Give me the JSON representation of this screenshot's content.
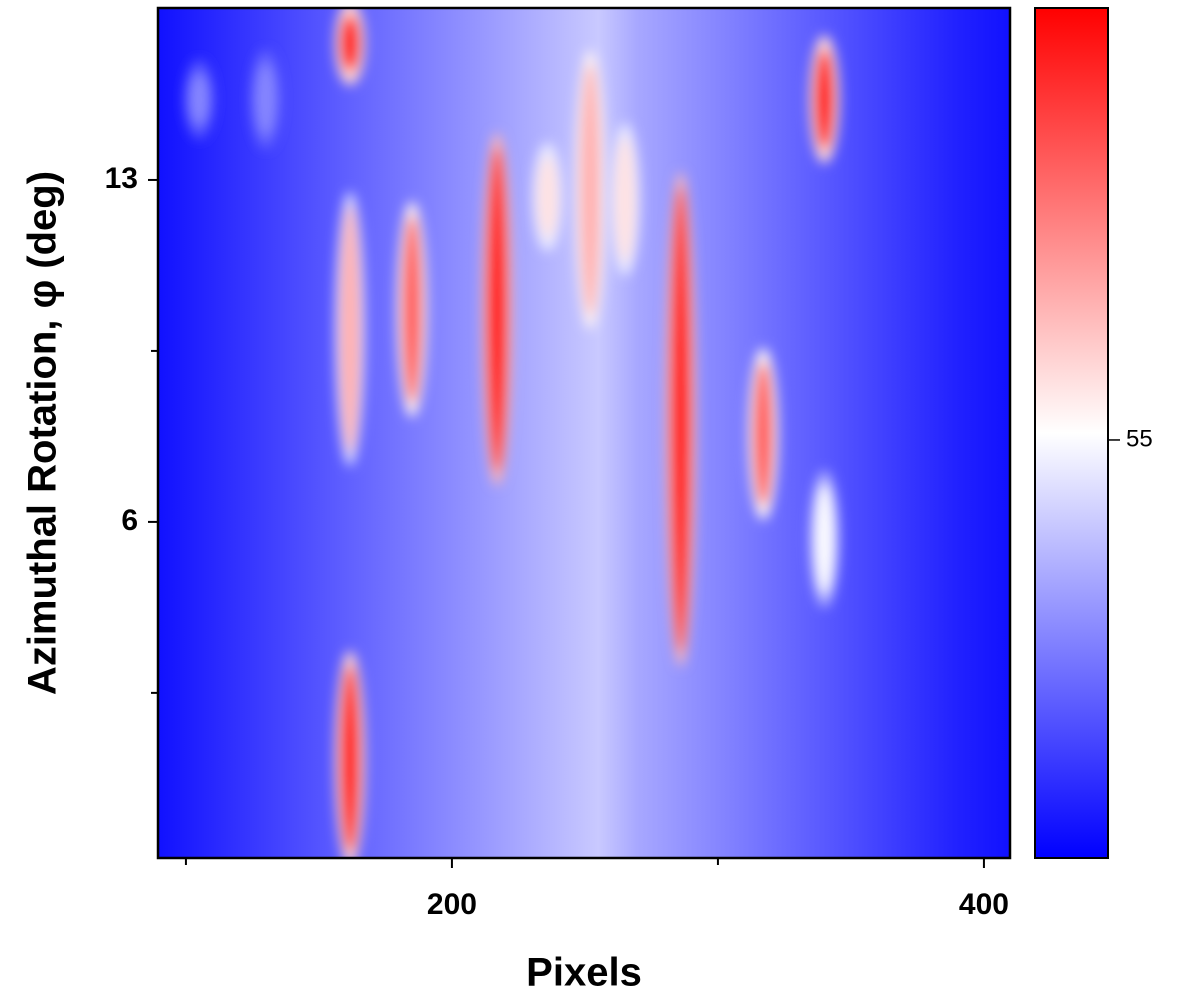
{
  "chart_data": {
    "type": "heatmap",
    "x_label": "Pixels",
    "y_label": "Azimuthal Rotation, φ (deg)",
    "xlim": [
      89.5,
      409.8
    ],
    "xticks": [
      200,
      400
    ],
    "xminorticks": [
      100,
      300
    ],
    "ylim": [
      -0.88,
      16.52
    ],
    "yticks": [
      6,
      13
    ],
    "yminorticks": [
      2.5,
      9.5
    ],
    "clim": [
      40,
      70.5
    ],
    "cticks": [
      55
    ],
    "colors": [
      "#0000ff",
      "#ffffff",
      "#ff0000"
    ],
    "background": {
      "x": [
        90,
        120,
        150,
        180,
        210,
        240,
        255,
        270,
        300,
        330,
        360,
        390,
        410
      ],
      "values": [
        41,
        43,
        45,
        47,
        49,
        51,
        52,
        50,
        48,
        46,
        44,
        42,
        41
      ]
    },
    "streaks": [
      {
        "x": 161.7,
        "y0": 15.1,
        "y1": 16.5,
        "value": 70
      },
      {
        "x": 161.7,
        "y0": 7.3,
        "y1": 12.6,
        "value": 60
      },
      {
        "x": 161.7,
        "y0": -0.9,
        "y1": 3.2,
        "value": 70
      },
      {
        "x": 185,
        "y0": 8.3,
        "y1": 12.4,
        "value": 65
      },
      {
        "x": 217,
        "y0": 6.9,
        "y1": 13.8,
        "value": 70
      },
      {
        "x": 236,
        "y0": 11.7,
        "y1": 13.6,
        "value": 57
      },
      {
        "x": 252,
        "y0": 10.1,
        "y1": 15.5,
        "value": 60
      },
      {
        "x": 265,
        "y0": 11.2,
        "y1": 14,
        "value": 57
      },
      {
        "x": 286,
        "y0": 3.2,
        "y1": 13,
        "value": 70
      },
      {
        "x": 317,
        "y0": 6.2,
        "y1": 9.4,
        "value": 65
      },
      {
        "x": 340,
        "y0": 13.5,
        "y1": 15.8,
        "value": 70
      },
      {
        "x": 340,
        "y0": 4.4,
        "y1": 6.9,
        "value": 55
      },
      {
        "x": 105,
        "y0": 14,
        "y1": 15.3,
        "value": 48
      },
      {
        "x": 130,
        "y0": 13.8,
        "y1": 15.5,
        "value": 48
      }
    ]
  }
}
